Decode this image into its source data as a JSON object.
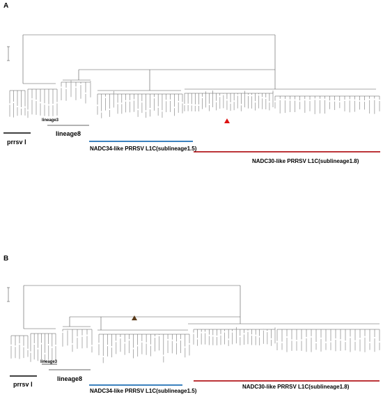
{
  "panels": [
    {
      "label": "A",
      "scale_label": "0.5",
      "groups": {
        "prrsv": "prrsv Ⅰ",
        "lineage3": "lineage3",
        "lineage8": "lineage8",
        "nadc34": "NADC34-like PRRSV L1C(sublineage1.5)",
        "nadc30": "NADC30-like PRRSV L1C(sublineage1.8)"
      }
    },
    {
      "label": "B",
      "scale_label": "0.5",
      "groups": {
        "prrsv": "prrsv Ⅰ",
        "lineage3": "lineage3",
        "lineage8": "lineage8",
        "nadc34": "NADC34-like PRRSV L1C(sublineage1.5)",
        "nadc30": "NADC30-like PRRSV L1C(sublineage1.8)"
      }
    }
  ],
  "colors": {
    "tree": "#555555",
    "prrsv_bar": "#000000",
    "lineage8_bar": "#999999",
    "nadc34_bar": "#1f6fb5",
    "nadc30_bar": "#b3171b",
    "marker_a": "#d11",
    "marker_b": "#5a3a1a"
  }
}
